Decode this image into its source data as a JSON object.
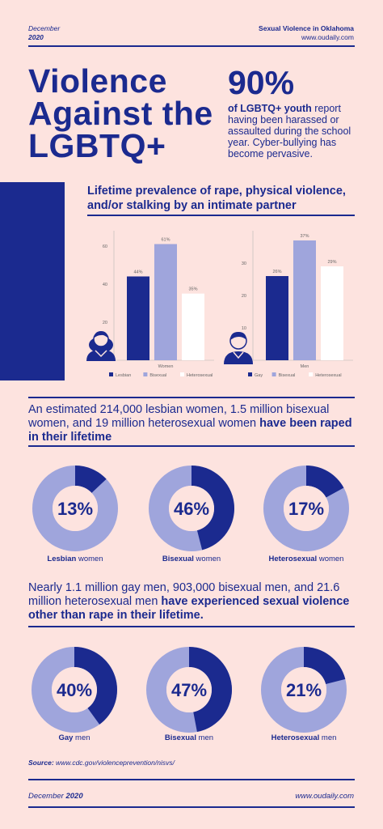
{
  "header": {
    "date_month": "December",
    "date_year": "2020",
    "series": "Sexual Violence in Oklahoma",
    "site": "www.oudaily.com"
  },
  "title": "Violence Against the LGBTQ+",
  "stat": {
    "number": "90%",
    "bold_text": "of LGBTQ+ youth",
    "rest_text": " report having been harassed or assaulted during the school year. Cyber-bullying has become pervasive."
  },
  "section1_title": "Lifetime prevalence of rape, physical violence, and/or stalking by an intimate partner",
  "chart_data": [
    {
      "type": "bar",
      "categories": [
        "Women"
      ],
      "series": [
        {
          "name": "Lesbian",
          "values": [
            44
          ],
          "label": "44%"
        },
        {
          "name": "Bisexual",
          "values": [
            61
          ],
          "label": "61%"
        },
        {
          "name": "Heterosexual",
          "values": [
            35
          ],
          "label": "35%"
        }
      ],
      "yticks": [
        "20",
        "40",
        "60"
      ],
      "ylim": [
        0,
        68
      ],
      "xlabel": "Women",
      "colors": [
        "#1b2a8f",
        "#9fa5dc",
        "#ffffff"
      ]
    },
    {
      "type": "bar",
      "categories": [
        "Men"
      ],
      "series": [
        {
          "name": "Gay",
          "values": [
            26
          ],
          "label": "26%"
        },
        {
          "name": "Bisexual",
          "values": [
            37
          ],
          "label": "37%"
        },
        {
          "name": "Heterosexual",
          "values": [
            29
          ],
          "label": "29%"
        }
      ],
      "yticks": [
        "10",
        "20",
        "30"
      ],
      "ylim": [
        0,
        40
      ],
      "xlabel": "Men",
      "colors": [
        "#1b2a8f",
        "#9fa5dc",
        "#ffffff"
      ]
    },
    {
      "type": "pie",
      "title": "Lesbian women",
      "values": [
        13,
        87
      ],
      "center_label": "13%"
    },
    {
      "type": "pie",
      "title": "Bisexual women",
      "values": [
        46,
        54
      ],
      "center_label": "46%"
    },
    {
      "type": "pie",
      "title": "Heterosexual women",
      "values": [
        17,
        83
      ],
      "center_label": "17%"
    },
    {
      "type": "pie",
      "title": "Gay men",
      "values": [
        40,
        60
      ],
      "center_label": "40%"
    },
    {
      "type": "pie",
      "title": "Bisexual men",
      "values": [
        47,
        53
      ],
      "center_label": "47%"
    },
    {
      "type": "pie",
      "title": "Heterosexual men",
      "values": [
        21,
        79
      ],
      "center_label": "21%"
    }
  ],
  "para1": {
    "plain": "An estimated 214,000 lesbian women, 1.5 million bisexual women, and 19 million heterosexual women ",
    "bold": "have been raped in their lifetime"
  },
  "women_donuts": [
    {
      "pct": "13%",
      "bold": "Lesbian",
      "rest": " women"
    },
    {
      "pct": "46%",
      "bold": "Bisexual",
      "rest": " women"
    },
    {
      "pct": "17%",
      "bold": "Heterosexual",
      "rest": " women"
    }
  ],
  "para2": {
    "plain": "Nearly 1.1 million gay men, 903,000 bisexual men, and 21.6 million heterosexual men ",
    "bold": "have experienced sexual violence other than rape in their lifetime."
  },
  "men_donuts": [
    {
      "pct": "40%",
      "bold": "Gay",
      "rest": " men"
    },
    {
      "pct": "47%",
      "bold": "Bisexual",
      "rest": " men"
    },
    {
      "pct": "21%",
      "bold": "Heterosexual",
      "rest": " men"
    }
  ],
  "source": {
    "label": "Source:",
    "url": " www.cdc.gov/violenceprevention/nisvs/"
  },
  "footer": {
    "month": "December ",
    "year": "2020",
    "site": "www.oudaily.com"
  },
  "colors": {
    "navy": "#1b2a8f",
    "lavender": "#9fa5dc",
    "background": "#fde3df",
    "white": "#ffffff"
  },
  "icons": [
    "woman-avatar-icon",
    "man-avatar-icon"
  ]
}
